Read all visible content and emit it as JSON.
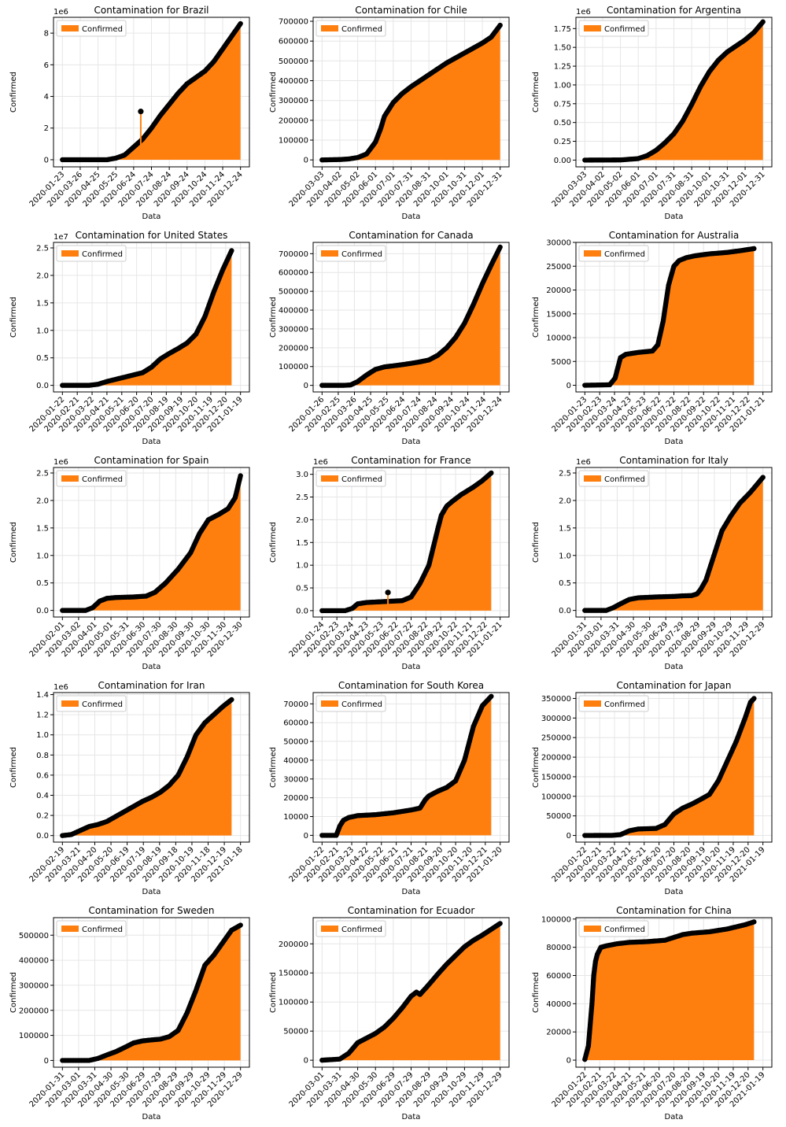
{
  "style": {
    "area_color": "#ff7f0e",
    "marker_color": "#000000",
    "grid_color": "#e6e6e6"
  },
  "chart_data": [
    {
      "type": "area",
      "title": "Contamination for Brazil",
      "xlabel": "Data",
      "ylabel": "Confirmed",
      "legend": "Confirmed",
      "legend_loc": "upper-left",
      "grid": true,
      "x_ticks": [
        "2020-01-23",
        "2020-03-26",
        "2020-04-25",
        "2020-05-25",
        "2020-06-24",
        "2020-07-24",
        "2020-08-24",
        "2020-09-24",
        "2020-10-24",
        "2020-11-24",
        "2020-12-24"
      ],
      "y_ticks": [
        "0",
        "2",
        "4",
        "6",
        "8"
      ],
      "y_offset": "1e6",
      "ylim": [
        -0.45,
        9.0
      ],
      "x": [
        0,
        0.25,
        0.3,
        0.35,
        0.4,
        0.45,
        0.5,
        0.55,
        0.6,
        0.65,
        0.7,
        0.75,
        0.8,
        0.85,
        0.9,
        0.95,
        1.0
      ],
      "y": [
        0,
        0,
        0.1,
        0.3,
        0.8,
        1.3,
        2.0,
        2.8,
        3.5,
        4.2,
        4.8,
        5.2,
        5.6,
        6.2,
        7.0,
        7.8,
        8.6
      ],
      "spikes": [
        {
          "x": 0.44,
          "y": 3.05
        }
      ]
    },
    {
      "type": "area",
      "title": "Contamination for Chile",
      "xlabel": "Data",
      "ylabel": "Confirmed",
      "legend": "Confirmed",
      "legend_loc": "upper-left",
      "grid": true,
      "x_ticks": [
        "2020-03-03",
        "2020-04-02",
        "2020-05-02",
        "2020-06-01",
        "2020-07-01",
        "2020-07-31",
        "2020-08-31",
        "2020-10-01",
        "2020-10-31",
        "2020-12-01",
        "2020-12-31"
      ],
      "y_ticks": [
        "0",
        "100000",
        "200000",
        "300000",
        "400000",
        "500000",
        "600000",
        "700000"
      ],
      "y_offset": "",
      "ylim": [
        -35000,
        720000
      ],
      "x": [
        0,
        0.1,
        0.15,
        0.2,
        0.25,
        0.3,
        0.33,
        0.35,
        0.4,
        0.45,
        0.5,
        0.55,
        0.6,
        0.65,
        0.7,
        0.75,
        0.8,
        0.85,
        0.9,
        0.95,
        1.0
      ],
      "y": [
        0,
        2000,
        5000,
        12000,
        30000,
        90000,
        160000,
        220000,
        290000,
        335000,
        370000,
        400000,
        430000,
        460000,
        490000,
        515000,
        540000,
        565000,
        590000,
        620000,
        680000
      ],
      "spikes": []
    },
    {
      "type": "area",
      "title": "Contamination for Argentina",
      "xlabel": "Data",
      "ylabel": "Confirmed",
      "legend": "Confirmed",
      "legend_loc": "upper-left",
      "grid": true,
      "x_ticks": [
        "2020-03-03",
        "2020-04-02",
        "2020-05-02",
        "2020-06-01",
        "2020-07-01",
        "2020-07-31",
        "2020-08-31",
        "2020-10-01",
        "2020-10-31",
        "2020-12-01",
        "2020-12-31"
      ],
      "y_ticks": [
        "0.00",
        "0.25",
        "0.50",
        "0.75",
        "1.00",
        "1.25",
        "1.50",
        "1.75"
      ],
      "y_offset": "1e6",
      "ylim": [
        -0.09,
        1.9
      ],
      "x": [
        0,
        0.2,
        0.3,
        0.35,
        0.4,
        0.45,
        0.5,
        0.55,
        0.6,
        0.65,
        0.7,
        0.75,
        0.8,
        0.85,
        0.9,
        0.95,
        1.0
      ],
      "y": [
        0,
        0.002,
        0.02,
        0.06,
        0.13,
        0.23,
        0.35,
        0.52,
        0.74,
        0.98,
        1.18,
        1.33,
        1.44,
        1.52,
        1.6,
        1.7,
        1.84
      ],
      "spikes": []
    },
    {
      "type": "area",
      "title": "Contamination for United States",
      "xlabel": "Data",
      "ylabel": "Confirmed",
      "legend": "Confirmed",
      "legend_loc": "upper-left",
      "grid": true,
      "x_ticks": [
        "2020-01-22",
        "2020-02-21",
        "2020-03-22",
        "2020-04-21",
        "2020-05-21",
        "2020-06-20",
        "2020-07-20",
        "2020-08-19",
        "2020-09-19",
        "2020-10-20",
        "2020-11-19",
        "2020-12-20",
        "2021-01-19"
      ],
      "y_ticks": [
        "0.0",
        "0.5",
        "1.0",
        "1.5",
        "2.0",
        "2.5"
      ],
      "y_offset": "1e7",
      "ylim": [
        -0.12,
        2.6
      ],
      "x": [
        0,
        0.15,
        0.2,
        0.25,
        0.3,
        0.35,
        0.4,
        0.45,
        0.5,
        0.55,
        0.6,
        0.65,
        0.7,
        0.75,
        0.8,
        0.85,
        0.9,
        0.95
      ],
      "y": [
        0,
        0,
        0.02,
        0.07,
        0.11,
        0.15,
        0.19,
        0.23,
        0.33,
        0.48,
        0.58,
        0.67,
        0.77,
        0.93,
        1.25,
        1.7,
        2.1,
        2.45
      ],
      "spikes": []
    },
    {
      "type": "area",
      "title": "Contamination for Canada",
      "xlabel": "Data",
      "ylabel": "Confirmed",
      "legend": "Confirmed",
      "legend_loc": "upper-left",
      "grid": true,
      "x_ticks": [
        "2020-01-26",
        "2020-02-25",
        "2020-03-26",
        "2020-04-25",
        "2020-05-25",
        "2020-06-24",
        "2020-07-24",
        "2020-08-24",
        "2020-09-24",
        "2020-10-24",
        "2020-11-24",
        "2020-12-24"
      ],
      "y_ticks": [
        "0",
        "100000",
        "200000",
        "300000",
        "400000",
        "500000",
        "600000",
        "700000"
      ],
      "y_offset": "",
      "ylim": [
        -35000,
        760000
      ],
      "x": [
        0,
        0.12,
        0.16,
        0.2,
        0.25,
        0.3,
        0.35,
        0.4,
        0.45,
        0.5,
        0.55,
        0.6,
        0.65,
        0.7,
        0.75,
        0.8,
        0.85,
        0.9,
        0.95,
        1.0
      ],
      "y": [
        0,
        0,
        2000,
        20000,
        55000,
        85000,
        98000,
        104000,
        110000,
        117000,
        125000,
        135000,
        160000,
        200000,
        255000,
        330000,
        430000,
        540000,
        640000,
        735000
      ],
      "spikes": []
    },
    {
      "type": "area",
      "title": "Contamination for Australia",
      "xlabel": "Data",
      "ylabel": "Confirmed",
      "legend": "Confirmed",
      "legend_loc": "upper-left",
      "grid": true,
      "x_ticks": [
        "2020-01-23",
        "2020-02-23",
        "2020-03-24",
        "2020-04-23",
        "2020-05-23",
        "2020-06-22",
        "2020-07-22",
        "2020-08-22",
        "2020-09-22",
        "2020-10-22",
        "2020-11-21",
        "2020-12-22",
        "2021-01-21"
      ],
      "y_ticks": [
        "0",
        "5000",
        "10000",
        "15000",
        "20000",
        "25000",
        "30000"
      ],
      "y_offset": "",
      "ylim": [
        -1400,
        30000
      ],
      "x": [
        0,
        0.14,
        0.17,
        0.2,
        0.23,
        0.3,
        0.38,
        0.41,
        0.44,
        0.47,
        0.5,
        0.53,
        0.57,
        0.62,
        0.7,
        0.8,
        0.88,
        0.95
      ],
      "y": [
        0,
        100,
        1500,
        5800,
        6500,
        6900,
        7200,
        8500,
        13500,
        21000,
        25000,
        26200,
        26800,
        27200,
        27600,
        27900,
        28300,
        28700
      ],
      "spikes": []
    },
    {
      "type": "area",
      "title": "Contamination for Spain",
      "xlabel": "Data",
      "ylabel": "Confirmed",
      "legend": "Confirmed",
      "legend_loc": "upper-left",
      "grid": true,
      "x_ticks": [
        "2020-02-01",
        "2020-03-02",
        "2020-04-01",
        "2020-05-01",
        "2020-05-31",
        "2020-06-30",
        "2020-07-30",
        "2020-08-30",
        "2020-09-30",
        "2020-10-30",
        "2020-11-30",
        "2020-12-30"
      ],
      "y_ticks": [
        "0.0",
        "0.5",
        "1.0",
        "1.5",
        "2.0",
        "2.5"
      ],
      "y_offset": "1e6",
      "ylim": [
        -0.12,
        2.6
      ],
      "x": [
        0,
        0.13,
        0.17,
        0.21,
        0.25,
        0.3,
        0.4,
        0.47,
        0.52,
        0.58,
        0.65,
        0.72,
        0.77,
        0.82,
        0.88,
        0.93,
        0.97,
        1.0
      ],
      "y": [
        0,
        0,
        0.05,
        0.17,
        0.22,
        0.235,
        0.245,
        0.26,
        0.33,
        0.5,
        0.75,
        1.05,
        1.4,
        1.65,
        1.75,
        1.85,
        2.05,
        2.45
      ],
      "spikes": []
    },
    {
      "type": "area",
      "title": "Contamination for France",
      "xlabel": "Data",
      "ylabel": "Confirmed",
      "legend": "Confirmed",
      "legend_loc": "upper-left",
      "grid": true,
      "x_ticks": [
        "2020-01-24",
        "2020-02-23",
        "2020-03-24",
        "2020-04-23",
        "2020-05-23",
        "2020-06-22",
        "2020-07-22",
        "2020-08-22",
        "2020-09-22",
        "2020-10-22",
        "2020-11-21",
        "2020-12-22",
        "2021-01-21"
      ],
      "y_ticks": [
        "0.0",
        "0.5",
        "1.0",
        "1.5",
        "2.0",
        "2.5",
        "3.0"
      ],
      "y_offset": "1e6",
      "ylim": [
        -0.14,
        3.15
      ],
      "x": [
        0,
        0.13,
        0.17,
        0.2,
        0.25,
        0.35,
        0.45,
        0.5,
        0.55,
        0.6,
        0.65,
        0.67,
        0.7,
        0.73,
        0.78,
        0.85,
        0.9,
        0.95
      ],
      "y": [
        0,
        0,
        0.05,
        0.15,
        0.18,
        0.2,
        0.22,
        0.3,
        0.6,
        1.0,
        1.8,
        2.1,
        2.3,
        2.4,
        2.55,
        2.72,
        2.86,
        3.03
      ],
      "spikes": [
        {
          "x": 0.37,
          "y": 0.4
        }
      ]
    },
    {
      "type": "area",
      "title": "Contamination for Italy",
      "xlabel": "Data",
      "ylabel": "Confirmed",
      "legend": "Confirmed",
      "legend_loc": "upper-left",
      "grid": true,
      "x_ticks": [
        "2020-01-31",
        "2020-03-01",
        "2020-03-31",
        "2020-04-30",
        "2020-05-30",
        "2020-06-29",
        "2020-07-29",
        "2020-08-29",
        "2020-09-29",
        "2020-10-29",
        "2020-11-29",
        "2020-12-29"
      ],
      "y_ticks": [
        "0.0",
        "0.5",
        "1.0",
        "1.5",
        "2.0",
        "2.5"
      ],
      "y_offset": "1e6",
      "ylim": [
        -0.12,
        2.6
      ],
      "x": [
        0,
        0.12,
        0.16,
        0.2,
        0.25,
        0.3,
        0.4,
        0.5,
        0.55,
        0.6,
        0.63,
        0.65,
        0.68,
        0.72,
        0.77,
        0.82,
        0.87,
        0.93,
        1.0
      ],
      "y": [
        0,
        0,
        0.05,
        0.12,
        0.2,
        0.23,
        0.245,
        0.255,
        0.265,
        0.27,
        0.3,
        0.38,
        0.55,
        0.95,
        1.45,
        1.72,
        1.95,
        2.15,
        2.42
      ],
      "spikes": []
    },
    {
      "type": "area",
      "title": "Contamination for Iran",
      "xlabel": "Data",
      "ylabel": "Confirmed",
      "legend": "Confirmed",
      "legend_loc": "upper-left",
      "grid": true,
      "x_ticks": [
        "2020-02-19",
        "2020-03-21",
        "2020-04-20",
        "2020-05-20",
        "2020-06-19",
        "2020-07-19",
        "2020-08-19",
        "2020-09-18",
        "2020-10-19",
        "2020-11-18",
        "2020-12-19",
        "2021-01-18"
      ],
      "y_ticks": [
        "0.0",
        "0.2",
        "0.4",
        "0.6",
        "0.8",
        "1.0",
        "1.2",
        "1.4"
      ],
      "y_offset": "1e6",
      "ylim": [
        -0.065,
        1.42
      ],
      "x": [
        0,
        0.05,
        0.1,
        0.15,
        0.2,
        0.25,
        0.3,
        0.35,
        0.4,
        0.45,
        0.5,
        0.55,
        0.6,
        0.65,
        0.7,
        0.75,
        0.8,
        0.85,
        0.9,
        0.95
      ],
      "y": [
        0,
        0.01,
        0.05,
        0.09,
        0.11,
        0.14,
        0.19,
        0.24,
        0.29,
        0.34,
        0.38,
        0.43,
        0.5,
        0.6,
        0.78,
        1.0,
        1.12,
        1.2,
        1.28,
        1.35
      ],
      "spikes": []
    },
    {
      "type": "area",
      "title": "Contamination for South Korea",
      "xlabel": "Data",
      "ylabel": "Confirmed",
      "legend": "Confirmed",
      "legend_loc": "upper-left",
      "grid": true,
      "x_ticks": [
        "2020-01-22",
        "2020-02-21",
        "2020-03-23",
        "2020-04-22",
        "2020-05-22",
        "2020-06-21",
        "2020-07-21",
        "2020-08-21",
        "2020-09-20",
        "2020-10-20",
        "2020-11-20",
        "2020-12-21",
        "2021-01-20"
      ],
      "y_ticks": [
        "0",
        "10000",
        "20000",
        "30000",
        "40000",
        "50000",
        "60000",
        "70000"
      ],
      "y_offset": "",
      "ylim": [
        -3600,
        76000
      ],
      "x": [
        0,
        0.08,
        0.1,
        0.12,
        0.15,
        0.2,
        0.3,
        0.4,
        0.5,
        0.55,
        0.58,
        0.6,
        0.65,
        0.7,
        0.75,
        0.8,
        0.85,
        0.9,
        0.95
      ],
      "y": [
        0,
        0,
        5000,
        8000,
        9500,
        10500,
        11000,
        12000,
        13500,
        14500,
        19000,
        21000,
        23500,
        25500,
        29000,
        40000,
        58000,
        69000,
        74000
      ],
      "spikes": []
    },
    {
      "type": "area",
      "title": "Contamination for Japan",
      "xlabel": "Data",
      "ylabel": "Confirmed",
      "legend": "Confirmed",
      "legend_loc": "upper-left",
      "grid": true,
      "x_ticks": [
        "2020-01-22",
        "2020-02-21",
        "2020-03-22",
        "2020-04-21",
        "2020-05-21",
        "2020-06-20",
        "2020-07-20",
        "2020-08-20",
        "2020-09-19",
        "2020-10-20",
        "2020-11-19",
        "2020-12-20",
        "2021-01-19"
      ],
      "y_ticks": [
        "0",
        "50000",
        "100000",
        "150000",
        "200000",
        "250000",
        "300000",
        "350000"
      ],
      "y_offset": "",
      "ylim": [
        -17000,
        365000
      ],
      "x": [
        0,
        0.15,
        0.2,
        0.25,
        0.3,
        0.4,
        0.45,
        0.5,
        0.55,
        0.6,
        0.65,
        0.7,
        0.75,
        0.8,
        0.85,
        0.9,
        0.93,
        0.95
      ],
      "y": [
        0,
        200,
        2000,
        12000,
        16500,
        18000,
        28000,
        55000,
        70000,
        80000,
        92000,
        105000,
        140000,
        190000,
        240000,
        300000,
        340000,
        350000
      ],
      "spikes": []
    },
    {
      "type": "area",
      "title": "Contamination for Sweden",
      "xlabel": "Data",
      "ylabel": "Confirmed",
      "legend": "Confirmed",
      "legend_loc": "upper-left",
      "grid": true,
      "x_ticks": [
        "2020-01-31",
        "2020-03-01",
        "2020-03-31",
        "2020-04-30",
        "2020-05-30",
        "2020-06-29",
        "2020-07-29",
        "2020-08-29",
        "2020-09-29",
        "2020-10-29",
        "2020-11-29",
        "2020-12-29"
      ],
      "y_ticks": [
        "0",
        "100000",
        "200000",
        "300000",
        "400000",
        "500000"
      ],
      "y_offset": "",
      "ylim": [
        -27000,
        570000
      ],
      "x": [
        0,
        0.15,
        0.2,
        0.25,
        0.3,
        0.35,
        0.4,
        0.45,
        0.5,
        0.55,
        0.6,
        0.65,
        0.7,
        0.75,
        0.8,
        0.85,
        0.9,
        0.95,
        1.0
      ],
      "y": [
        0,
        0,
        8000,
        22000,
        35000,
        52000,
        70000,
        78000,
        82000,
        85000,
        95000,
        120000,
        190000,
        280000,
        380000,
        420000,
        470000,
        520000,
        540000
      ],
      "spikes": []
    },
    {
      "type": "area",
      "title": "Contamination for Ecuador",
      "xlabel": "Data",
      "ylabel": "Confirmed",
      "legend": "Confirmed",
      "legend_loc": "upper-left",
      "grid": true,
      "x_ticks": [
        "2020-03-01",
        "2020-03-31",
        "2020-04-30",
        "2020-05-30",
        "2020-06-29",
        "2020-07-29",
        "2020-08-29",
        "2020-09-29",
        "2020-10-29",
        "2020-11-29",
        "2020-12-29"
      ],
      "y_ticks": [
        "0",
        "50000",
        "100000",
        "150000",
        "200000"
      ],
      "y_offset": "",
      "ylim": [
        -12000,
        245000
      ],
      "x": [
        0,
        0.1,
        0.15,
        0.2,
        0.25,
        0.3,
        0.35,
        0.4,
        0.45,
        0.5,
        0.53,
        0.55,
        0.6,
        0.65,
        0.7,
        0.75,
        0.8,
        0.85,
        0.9,
        0.95,
        1.0
      ],
      "y": [
        0,
        2000,
        12000,
        30000,
        38000,
        46000,
        57000,
        72000,
        90000,
        110000,
        117000,
        113000,
        130000,
        148000,
        165000,
        180000,
        195000,
        206000,
        215000,
        225000,
        235000
      ],
      "spikes": []
    },
    {
      "type": "area",
      "title": "Contamination for China",
      "xlabel": "Data",
      "ylabel": "Confirmed",
      "legend": "Confirmed",
      "legend_loc": "upper-left",
      "grid": true,
      "x_ticks": [
        "2020-01-22",
        "2020-02-21",
        "2020-03-22",
        "2020-04-21",
        "2020-05-21",
        "2020-06-20",
        "2020-07-20",
        "2020-08-20",
        "2020-09-19",
        "2020-10-20",
        "2020-11-19",
        "2020-12-20",
        "2021-01-19"
      ],
      "y_ticks": [
        "0",
        "20000",
        "40000",
        "60000",
        "80000",
        "100000"
      ],
      "y_offset": "",
      "ylim": [
        -5000,
        101000
      ],
      "x": [
        0,
        0.02,
        0.04,
        0.05,
        0.06,
        0.07,
        0.09,
        0.12,
        0.18,
        0.25,
        0.35,
        0.45,
        0.5,
        0.55,
        0.6,
        0.7,
        0.8,
        0.9,
        0.95
      ],
      "y": [
        500,
        10000,
        40000,
        60000,
        70000,
        75000,
        80000,
        81000,
        82500,
        83500,
        84000,
        85000,
        87000,
        89000,
        90000,
        91000,
        93000,
        96000,
        98000
      ],
      "spikes": []
    }
  ]
}
